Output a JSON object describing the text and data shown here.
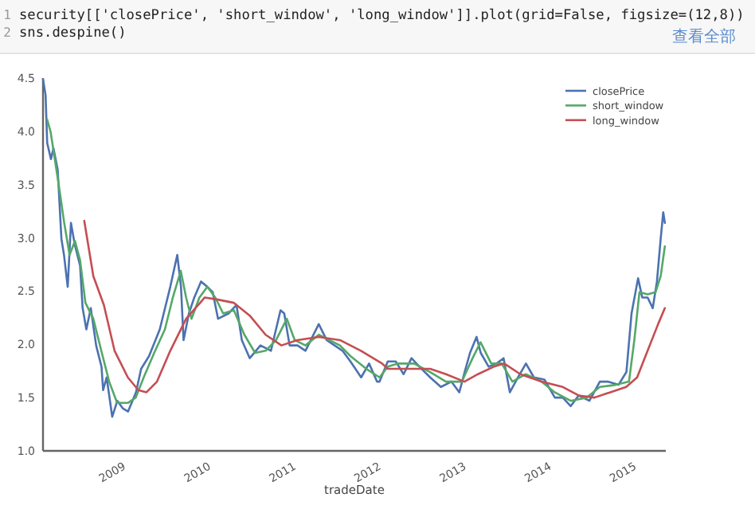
{
  "chart_data": {
    "type": "line",
    "xlabel": "tradeDate",
    "legend": "top right",
    "grid": false,
    "marker": "none",
    "line_style": "solid",
    "annotations": [
      "1",
      "security[['closePrice', 'short_window', 'long_window']].plot(grid=False, figsize=(12,8))",
      "2",
      "sns.despine()",
      "查看全部"
    ],
    "xlim": [
      "2008-01-09",
      "2015-05-04"
    ],
    "xticks": [
      "2009",
      "2010",
      "2011",
      "2012",
      "2013",
      "2014",
      "2015"
    ],
    "ylim": [
      1.0,
      4.5
    ],
    "yticks": [
      {
        "value": 1.0,
        "label": "1.0"
      },
      {
        "value": 1.5,
        "label": "1.5"
      },
      {
        "value": 2.0,
        "label": "2.0"
      },
      {
        "value": 2.5,
        "label": "2.5"
      },
      {
        "value": 3.0,
        "label": "3.0"
      },
      {
        "value": 3.5,
        "label": "3.5"
      },
      {
        "value": 4.0,
        "label": "4.0"
      },
      {
        "value": 4.5,
        "label": "4.5"
      }
    ],
    "series": [
      {
        "name": "closePrice",
        "color": "#4c72b0",
        "x": [
          "2008-01-09",
          "2008-01-20",
          "2008-01-27",
          "2008-02-12",
          "2008-02-23",
          "2008-03-12",
          "2008-03-28",
          "2008-04-08",
          "2008-04-24",
          "2008-05-08",
          "2008-05-24",
          "2008-06-16",
          "2008-06-27",
          "2008-07-13",
          "2008-08-01",
          "2008-08-24",
          "2008-09-16",
          "2008-09-23",
          "2008-10-08",
          "2008-11-01",
          "2008-11-23",
          "2008-12-16",
          "2009-01-08",
          "2009-02-11",
          "2009-03-05",
          "2009-04-08",
          "2009-05-24",
          "2009-07-08",
          "2009-08-07",
          "2009-08-23",
          "2009-09-03",
          "2009-09-26",
          "2009-10-19",
          "2009-11-17",
          "2009-12-14",
          "2010-01-06",
          "2010-01-29",
          "2010-03-15",
          "2010-04-18",
          "2010-05-11",
          "2010-06-14",
          "2010-07-30",
          "2010-09-13",
          "2010-10-24",
          "2010-11-09",
          "2010-12-02",
          "2011-01-05",
          "2011-02-08",
          "2011-04-06",
          "2011-05-10",
          "2011-06-13",
          "2011-07-17",
          "2011-08-20",
          "2011-10-05",
          "2011-11-08",
          "2011-12-12",
          "2011-12-23",
          "2012-01-27",
          "2012-03-01",
          "2012-04-04",
          "2012-05-08",
          "2012-06-11",
          "2012-07-27",
          "2012-09-11",
          "2012-10-26",
          "2012-11-29",
          "2012-12-22",
          "2013-01-14",
          "2013-02-11",
          "2013-03-01",
          "2013-04-04",
          "2013-05-08",
          "2013-06-07",
          "2013-07-04",
          "2013-08-08",
          "2013-09-11",
          "2013-10-15",
          "2013-11-29",
          "2014-01-13",
          "2014-02-16",
          "2014-03-22",
          "2014-04-25",
          "2014-06-10",
          "2014-07-25",
          "2014-08-28",
          "2014-10-13",
          "2014-11-16",
          "2014-12-08",
          "2015-01-05",
          "2015-01-23",
          "2015-02-15",
          "2015-03-09",
          "2015-03-27",
          "2015-04-12",
          "2015-04-23",
          "2015-04-30"
        ],
        "values": [
          4.49,
          4.34,
          3.89,
          3.74,
          3.84,
          3.64,
          2.99,
          2.84,
          2.54,
          3.14,
          2.94,
          2.74,
          2.34,
          2.14,
          2.34,
          1.99,
          1.79,
          1.57,
          1.69,
          1.32,
          1.47,
          1.4,
          1.37,
          1.55,
          1.77,
          1.89,
          2.14,
          2.54,
          2.84,
          2.54,
          2.04,
          2.29,
          2.44,
          2.59,
          2.54,
          2.49,
          2.24,
          2.29,
          2.37,
          2.04,
          1.87,
          1.99,
          1.94,
          2.32,
          2.29,
          1.99,
          1.99,
          1.94,
          2.19,
          2.04,
          1.99,
          1.94,
          1.84,
          1.69,
          1.82,
          1.65,
          1.65,
          1.84,
          1.84,
          1.72,
          1.87,
          1.79,
          1.69,
          1.6,
          1.65,
          1.55,
          1.74,
          1.92,
          2.07,
          1.92,
          1.79,
          1.82,
          1.87,
          1.55,
          1.69,
          1.82,
          1.69,
          1.67,
          1.5,
          1.5,
          1.42,
          1.52,
          1.47,
          1.65,
          1.65,
          1.62,
          1.74,
          2.29,
          2.62,
          2.44,
          2.44,
          2.34,
          2.59,
          2.99,
          3.24,
          3.14
        ]
      },
      {
        "name": "short_window",
        "color": "#55a868",
        "x": [
          "2008-01-27",
          "2008-02-11",
          "2008-03-17",
          "2008-04-09",
          "2008-05-02",
          "2008-05-25",
          "2008-06-16",
          "2008-07-09",
          "2008-08-12",
          "2008-09-15",
          "2008-10-19",
          "2008-11-22",
          "2009-01-07",
          "2009-02-10",
          "2009-03-16",
          "2009-04-30",
          "2009-06-15",
          "2009-07-19",
          "2009-08-22",
          "2009-09-14",
          "2009-10-07",
          "2009-11-10",
          "2009-12-14",
          "2010-01-17",
          "2010-02-20",
          "2010-04-07",
          "2010-05-22",
          "2010-07-07",
          "2010-08-21",
          "2010-10-05",
          "2010-11-20",
          "2010-12-24",
          "2011-02-08",
          "2011-04-06",
          "2011-05-21",
          "2011-07-06",
          "2011-08-20",
          "2011-10-27",
          "2011-12-23",
          "2012-01-27",
          "2012-03-12",
          "2012-05-19",
          "2012-07-27",
          "2012-10-03",
          "2012-12-10",
          "2013-01-25",
          "2013-02-28",
          "2013-04-15",
          "2013-05-30",
          "2013-07-15",
          "2013-09-10",
          "2013-11-17",
          "2014-01-12",
          "2014-03-22",
          "2014-05-29",
          "2014-07-25",
          "2014-10-01",
          "2014-11-27",
          "2014-12-20",
          "2015-01-11",
          "2015-02-15",
          "2015-03-21",
          "2015-04-12",
          "2015-04-30"
        ],
        "values": [
          4.11,
          3.99,
          3.49,
          3.14,
          2.84,
          2.97,
          2.79,
          2.39,
          2.24,
          1.94,
          1.65,
          1.45,
          1.45,
          1.5,
          1.69,
          1.92,
          2.14,
          2.44,
          2.69,
          2.44,
          2.24,
          2.44,
          2.54,
          2.44,
          2.29,
          2.32,
          2.09,
          1.92,
          1.94,
          2.04,
          2.24,
          2.04,
          1.99,
          2.09,
          2.04,
          1.99,
          1.89,
          1.77,
          1.69,
          1.79,
          1.82,
          1.82,
          1.74,
          1.65,
          1.65,
          1.87,
          2.02,
          1.82,
          1.82,
          1.65,
          1.72,
          1.65,
          1.55,
          1.47,
          1.5,
          1.6,
          1.62,
          1.65,
          2.04,
          2.49,
          2.47,
          2.49,
          2.64,
          2.92
        ]
      },
      {
        "name": "long_window",
        "color": "#c44e52",
        "x": [
          "2008-07-04",
          "2008-08-12",
          "2008-09-26",
          "2008-11-11",
          "2009-01-07",
          "2009-02-21",
          "2009-03-28",
          "2009-05-12",
          "2009-07-08",
          "2009-09-14",
          "2009-12-03",
          "2010-01-28",
          "2010-04-07",
          "2010-06-14",
          "2010-08-21",
          "2010-10-28",
          "2011-01-04",
          "2011-04-06",
          "2011-07-06",
          "2011-10-04",
          "2012-01-03",
          "2012-01-27",
          "2012-04-26",
          "2012-07-27",
          "2012-10-03",
          "2012-12-21",
          "2013-02-17",
          "2013-04-26",
          "2013-06-10",
          "2013-08-18",
          "2013-11-17",
          "2014-02-16",
          "2014-04-25",
          "2014-07-02",
          "2014-09-08",
          "2014-11-15",
          "2015-01-01",
          "2015-02-15",
          "2015-04-01",
          "2015-04-30"
        ],
        "values": [
          3.16,
          2.64,
          2.37,
          1.94,
          1.69,
          1.57,
          1.55,
          1.65,
          1.94,
          2.24,
          2.44,
          2.42,
          2.39,
          2.27,
          2.09,
          1.99,
          2.04,
          2.07,
          2.04,
          1.94,
          1.82,
          1.77,
          1.77,
          1.77,
          1.72,
          1.65,
          1.72,
          1.79,
          1.82,
          1.72,
          1.65,
          1.6,
          1.52,
          1.5,
          1.55,
          1.6,
          1.69,
          1.94,
          2.19,
          2.34
        ]
      }
    ]
  }
}
